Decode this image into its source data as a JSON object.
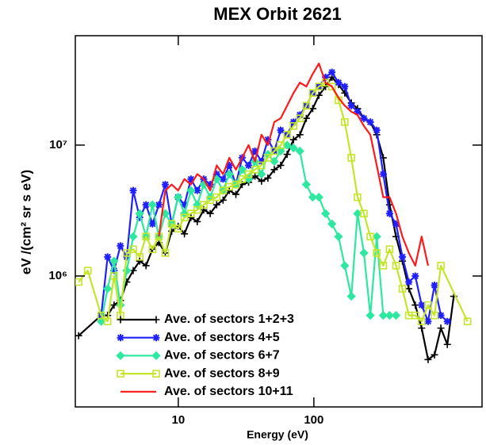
{
  "chart_data": {
    "type": "line",
    "title": "MEX Orbit 2621",
    "x_label": "Energy (eV)",
    "y_label": "eV /(cm² sr s eV)",
    "xscale": "log",
    "yscale": "log",
    "xlim": [
      1.74,
      1740
    ],
    "ylim": [
      100000,
      68500000
    ],
    "xticks": [
      10,
      100
    ],
    "yticks": [
      {
        "value": 1000000,
        "label": "10⁶"
      },
      {
        "value": 10000000,
        "label": "10⁷"
      }
    ],
    "legend": "lower left",
    "series": [
      {
        "name": "Ave. of sectors 1+2+3",
        "color": "#000000",
        "marker": "plus",
        "x": [
          1.84,
          2.7,
          3.01,
          3.36,
          3.74,
          4.17,
          4.65,
          5.19,
          5.78,
          6.45,
          7.19,
          8.02,
          8.94,
          9.97,
          11.1,
          12.4,
          13.8,
          15.4,
          17.2,
          19.2,
          21.4,
          23.8,
          26.6,
          29.6,
          33.0,
          36.8,
          41.1,
          45.8,
          51.1,
          56.9,
          63.5,
          70.8,
          78.9,
          88.0,
          98.1,
          109,
          122,
          136,
          152,
          169,
          189,
          210,
          234,
          261,
          291,
          325,
          362,
          404,
          450,
          502,
          560,
          624,
          696,
          776,
          865,
          965,
          1076
        ],
        "values": [
          350000,
          500000,
          500000,
          600000,
          650000,
          900000,
          1100000,
          1300000,
          1200000,
          1600000,
          1800000,
          1500000,
          2200000,
          2400000,
          2100000,
          2800000,
          2600000,
          3200000,
          3000000,
          3500000,
          3800000,
          4500000,
          4200000,
          5000000,
          5200000,
          5800000,
          5300000,
          5600000,
          6500000,
          7000000,
          8500000,
          11000000,
          12000000,
          16000000,
          19000000,
          24000000,
          28000000,
          33000000,
          29000000,
          25000000,
          21000000,
          19000000,
          16000000,
          15000000,
          12000000,
          8000000,
          3500000,
          2000000,
          1300000,
          800000,
          600000,
          400000,
          230000,
          250000,
          400000,
          300000,
          700000
        ]
      },
      {
        "name": "Ave. of sectors 4+5",
        "color": "#1f1fff",
        "marker": "star",
        "x": [
          2.7,
          3.01,
          3.36,
          3.74,
          4.17,
          4.65,
          5.19,
          5.78,
          6.45,
          7.19,
          8.02,
          8.94,
          9.97,
          11.1,
          12.4,
          13.8,
          15.4,
          17.2,
          19.2,
          21.4,
          23.8,
          26.6,
          29.6,
          33.0,
          36.8,
          41.1,
          45.8,
          51.1,
          56.9,
          63.5,
          70.8,
          78.9,
          88.0,
          98.1,
          109,
          122,
          136,
          152,
          169,
          189,
          210,
          234,
          261,
          291,
          325,
          362,
          404,
          450,
          502,
          560,
          624,
          696,
          776,
          865,
          965
        ],
        "values": [
          500000,
          1400000,
          1100000,
          1700000,
          1400000,
          4500000,
          2800000,
          3500000,
          2500000,
          3500000,
          5000000,
          2500000,
          4000000,
          3500000,
          5500000,
          4500000,
          5500000,
          5000000,
          6000000,
          5500000,
          7000000,
          5000000,
          8000000,
          7000000,
          9000000,
          7500000,
          11000000,
          9000000,
          13000000,
          12000000,
          15000000,
          17000000,
          20000000,
          25000000,
          28000000,
          33000000,
          36000000,
          30000000,
          28000000,
          20000000,
          18000000,
          16000000,
          15000000,
          13000000,
          6000000,
          3000000,
          2500000,
          1400000,
          900000,
          1000000,
          600000,
          450000,
          850000,
          500000,
          450000
        ]
      },
      {
        "name": "Ave. of sectors 6+7",
        "color": "#2ee8a0",
        "marker": "diamond",
        "x": [
          2.7,
          3.01,
          3.36,
          3.74,
          4.17,
          4.65,
          5.19,
          5.78,
          6.45,
          7.19,
          8.02,
          8.94,
          9.97,
          11.1,
          12.4,
          13.8,
          15.4,
          17.2,
          19.2,
          21.4,
          23.8,
          26.6,
          29.6,
          33.0,
          36.8,
          41.1,
          45.8,
          51.1,
          56.9,
          63.5,
          70.8,
          78.9,
          88.0,
          98.1,
          109,
          122,
          136,
          152,
          169,
          189,
          210,
          234,
          261,
          291,
          325,
          362,
          404
        ],
        "values": [
          450000,
          800000,
          1300000,
          600000,
          1100000,
          2000000,
          3000000,
          2000000,
          3500000,
          2000000,
          3000000,
          2500000,
          4000000,
          3000000,
          4500000,
          3500000,
          5000000,
          4000000,
          5500000,
          4500000,
          6000000,
          5000000,
          6500000,
          5500000,
          7500000,
          6000000,
          8500000,
          7500000,
          9000000,
          10000000,
          9500000,
          9000000,
          5000000,
          4000000,
          4000000,
          3000000,
          2500000,
          2000000,
          1200000,
          700000,
          3000000,
          1500000,
          500000,
          2000000,
          500000,
          500000,
          500000
        ]
      },
      {
        "name": "Ave. of sectors 8+9",
        "color": "#c4e62a",
        "marker": "square",
        "x": [
          1.84,
          2.15,
          2.7,
          3.01,
          3.36,
          3.74,
          4.17,
          4.65,
          5.19,
          5.78,
          6.45,
          7.19,
          8.02,
          8.94,
          9.97,
          11.1,
          12.4,
          13.8,
          15.4,
          17.2,
          19.2,
          21.4,
          23.8,
          26.6,
          29.6,
          33.0,
          36.8,
          41.1,
          45.8,
          51.1,
          56.9,
          63.5,
          70.8,
          78.9,
          88.0,
          98.1,
          109,
          122,
          136,
          152,
          169,
          189,
          210,
          234,
          261,
          291,
          325,
          362,
          404,
          450,
          502,
          560,
          624,
          696,
          776,
          865,
          1360
        ],
        "values": [
          900000,
          1100000,
          500000,
          450000,
          1000000,
          500000,
          1500000,
          1600000,
          1400000,
          2000000,
          1600000,
          2000000,
          1500000,
          2500000,
          2300000,
          2800000,
          3000000,
          3200000,
          3500000,
          3800000,
          4000000,
          4500000,
          4800000,
          5000000,
          5500000,
          6000000,
          6500000,
          7000000,
          8000000,
          9000000,
          10000000,
          12000000,
          14000000,
          16000000,
          20000000,
          25000000,
          28000000,
          30000000,
          28000000,
          22000000,
          15000000,
          8000000,
          4000000,
          3000000,
          2000000,
          1500000,
          1200000,
          1600000,
          1200000,
          800000,
          500000,
          500000,
          450000,
          600000,
          500000,
          1200000,
          450000
        ]
      },
      {
        "name": "Ave. of sectors 10+11",
        "color": "#ff1a1a",
        "marker": "none",
        "x": [
          7.19,
          8.02,
          8.94,
          9.97,
          11.1,
          12.4,
          13.8,
          15.4,
          17.2,
          19.2,
          21.4,
          23.8,
          26.6,
          29.6,
          33.0,
          36.8,
          41.1,
          45.8,
          51.1,
          56.9,
          63.5,
          70.8,
          78.9,
          88.0,
          98.1,
          109,
          122,
          136,
          152,
          169,
          189,
          210,
          234,
          261,
          291,
          325,
          362,
          404,
          450,
          502,
          560,
          624,
          696
        ],
        "values": [
          2000000,
          4500000,
          5000000,
          4500000,
          5500000,
          5000000,
          6000000,
          5500000,
          4500000,
          7000000,
          6000000,
          8000000,
          6500000,
          8000000,
          10000000,
          7500000,
          12000000,
          10000000,
          15000000,
          16000000,
          20000000,
          25000000,
          30000000,
          28000000,
          35000000,
          42000000,
          30000000,
          28000000,
          23000000,
          20000000,
          18000000,
          17000000,
          14000000,
          12000000,
          7000000,
          4000000,
          4000000,
          3000000,
          2000000,
          1500000,
          1200000,
          2000000,
          1200000
        ]
      }
    ]
  }
}
